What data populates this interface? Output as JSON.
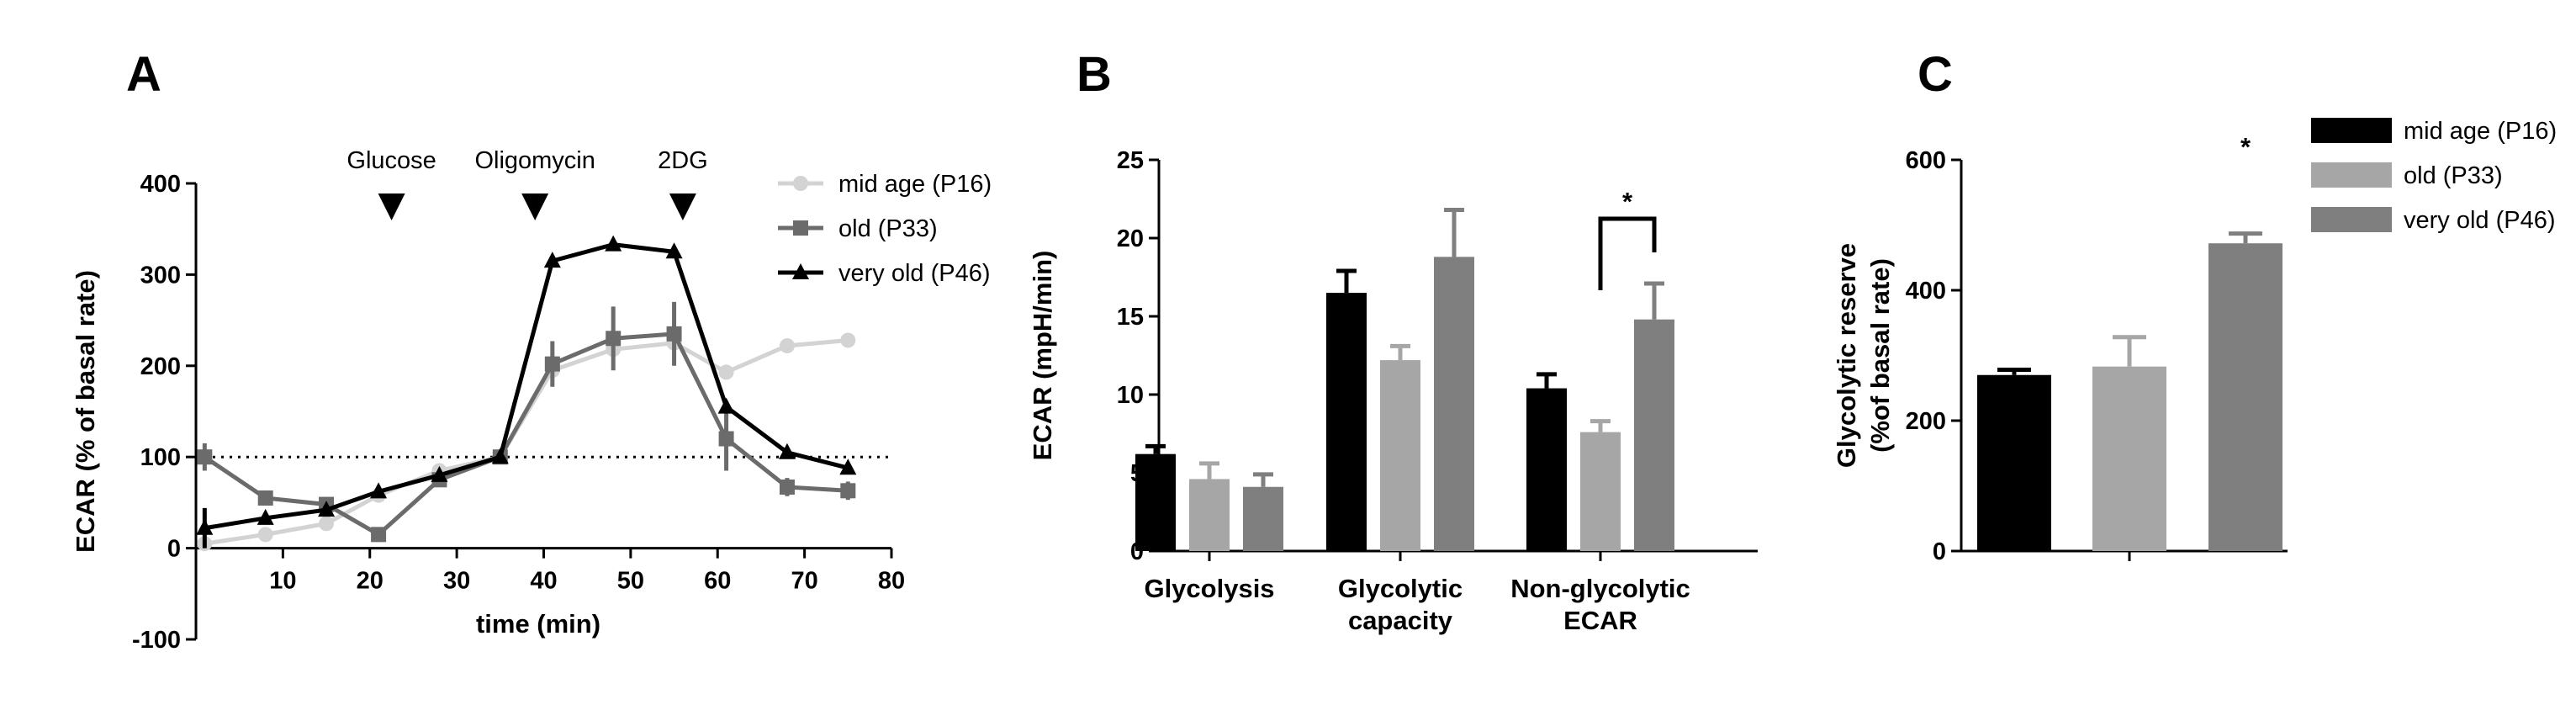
{
  "panels": {
    "a": "A",
    "b": "B",
    "c": "C"
  },
  "chart_data": [
    {
      "type": "line",
      "panel": "A",
      "xlabel": "time (min)",
      "ylabel": "ECAR (% of basal rate)",
      "xlim": [
        0,
        80
      ],
      "ylim": [
        -100,
        400
      ],
      "xticks": [
        "10",
        "20",
        "30",
        "40",
        "50",
        "60",
        "70",
        "80"
      ],
      "yticks": [
        "-100",
        "0",
        "100",
        "200",
        "300",
        "400"
      ],
      "xtick_values": [
        10,
        20,
        30,
        40,
        50,
        60,
        70,
        80
      ],
      "ytick_values": [
        -100,
        0,
        100,
        200,
        300,
        400
      ],
      "reference_line": {
        "y": 100,
        "style": "dotted"
      },
      "annotations": [
        {
          "text": "Glucose",
          "x": 22.5
        },
        {
          "text": "Oligomycin",
          "x": 39
        },
        {
          "text": "2DG",
          "x": 56
        }
      ],
      "legend_position": "top-right",
      "series": [
        {
          "name": "mid age (P16)",
          "color": "#d3d3d3",
          "marker": "circle",
          "x": [
            1,
            8,
            15,
            21,
            28,
            35,
            41,
            48,
            55,
            61,
            68,
            75
          ],
          "y": [
            5,
            15,
            27,
            58,
            85,
            100,
            195,
            218,
            225,
            193,
            222,
            228
          ],
          "error": [
            0,
            0,
            0,
            0,
            0,
            0,
            0,
            0,
            0,
            0,
            0,
            0
          ]
        },
        {
          "name": "old (P33)",
          "color": "#6b6b6b",
          "marker": "square",
          "x": [
            1,
            8,
            15,
            21,
            28,
            35,
            41,
            48,
            55,
            61,
            68,
            75
          ],
          "y": [
            100,
            55,
            48,
            15,
            75,
            100,
            202,
            230,
            235,
            120,
            67,
            63
          ],
          "error": [
            15,
            0,
            0,
            0,
            0,
            0,
            25,
            35,
            35,
            35,
            10,
            10
          ]
        },
        {
          "name": "very old (P46)",
          "color": "#000000",
          "marker": "triangle",
          "x": [
            1,
            8,
            15,
            21,
            28,
            35,
            41,
            48,
            55,
            61,
            68,
            75
          ],
          "y": [
            22,
            33,
            42,
            62,
            80,
            100,
            315,
            333,
            325,
            155,
            105,
            88
          ],
          "error": [
            22,
            0,
            0,
            0,
            0,
            0,
            0,
            0,
            0,
            0,
            0,
            0
          ]
        }
      ]
    },
    {
      "type": "bar",
      "panel": "B",
      "ylabel": "ECAR (mpH/min)",
      "ylim": [
        0,
        25
      ],
      "yticks": [
        "0",
        "5",
        "10",
        "15",
        "20",
        "25"
      ],
      "ytick_values": [
        0,
        5,
        10,
        15,
        20,
        25
      ],
      "categories": [
        [
          "Glycolysis"
        ],
        [
          "Glycolytic",
          "capacity"
        ],
        [
          "Non-glycolytic",
          "ECAR"
        ]
      ],
      "significance": {
        "label": "*",
        "category_index": 2,
        "between_series": [
          1,
          2
        ]
      },
      "series": [
        {
          "name": "mid age (P16)",
          "color": "#000000",
          "values": [
            6.2,
            16.5,
            10.4
          ],
          "error": [
            0.5,
            1.4,
            0.9
          ]
        },
        {
          "name": "old (P33)",
          "color": "#a6a6a6",
          "values": [
            4.6,
            12.2,
            7.6
          ],
          "error": [
            1.0,
            0.9,
            0.7
          ]
        },
        {
          "name": "very old (P46)",
          "color": "#7f7f7f",
          "values": [
            4.1,
            18.8,
            14.8
          ],
          "error": [
            0.8,
            3.0,
            2.3
          ]
        }
      ]
    },
    {
      "type": "bar",
      "panel": "C",
      "ylabel": [
        "Glycolytic reserve",
        "(%of basal rate)"
      ],
      "ylim": [
        0,
        600
      ],
      "yticks": [
        "0",
        "200",
        "400",
        "600"
      ],
      "ytick_values": [
        0,
        200,
        400,
        600
      ],
      "categories": [
        ""
      ],
      "significance": {
        "label": "*",
        "series_index": 2
      },
      "legend_position": "top-right",
      "series": [
        {
          "name": "mid age (P16)",
          "color": "#000000",
          "values": [
            270
          ],
          "error": [
            8
          ]
        },
        {
          "name": "old (P33)",
          "color": "#a6a6a6",
          "values": [
            283
          ],
          "error": [
            45
          ]
        },
        {
          "name": "very old (P46)",
          "color": "#7f7f7f",
          "values": [
            472
          ],
          "error": [
            15
          ]
        }
      ]
    }
  ]
}
